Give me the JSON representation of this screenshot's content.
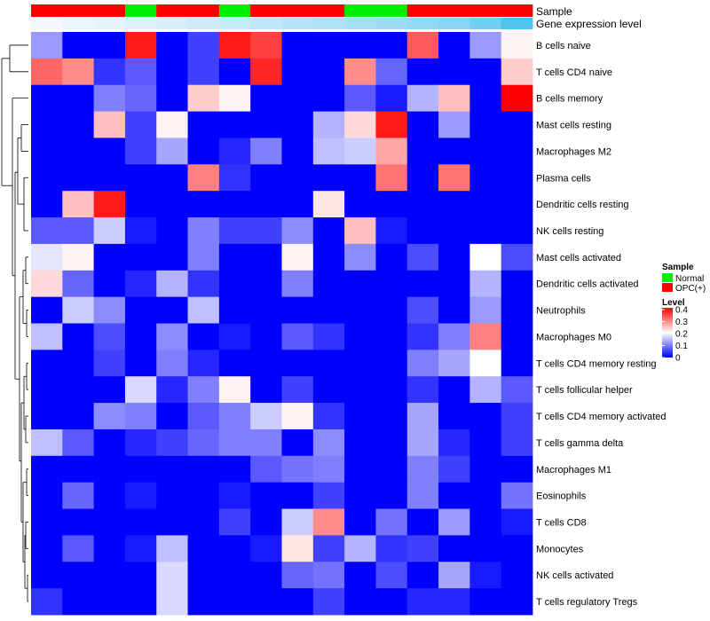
{
  "chart_data": {
    "type": "heatmap",
    "column_annotation": {
      "sample_label": "Sample",
      "level_label": "Gene expression level",
      "sample_groups": [
        "OPC(+)",
        "OPC(+)",
        "OPC(+)",
        "Normal",
        "OPC(+)",
        "OPC(+)",
        "Normal",
        "OPC(+)",
        "OPC(+)",
        "OPC(+)",
        "Normal",
        "Normal",
        "OPC(+)",
        "OPC(+)",
        "OPC(+)",
        "OPC(+)"
      ],
      "expression_level": [
        0.0,
        0.04,
        0.08,
        0.12,
        0.17,
        0.22,
        0.27,
        0.32,
        0.37,
        0.42,
        0.47,
        0.52,
        0.58,
        0.65,
        0.78,
        1.0
      ]
    },
    "rows": [
      "B cells naive",
      "T cells CD4 naive",
      "B cells memory",
      "Mast cells resting",
      "Macrophages M2",
      "Plasma cells",
      "Dendritic cells resting",
      "NK cells resting",
      "Mast cells activated",
      "Dendritic cells activated",
      "Neutrophils",
      "Macrophages M0",
      "T cells CD4 memory resting",
      "T cells follicular helper",
      "T cells CD4 memory activated",
      "T cells gamma delta",
      "Macrophages M1",
      "Eosinophils",
      "T cells CD8",
      "Monocytes",
      "NK cells activated",
      "T cells regulatory  Tregs"
    ],
    "values": [
      [
        0.12,
        0,
        0,
        0.38,
        0,
        0.05,
        0.38,
        0.35,
        0,
        0,
        0,
        0,
        0.33,
        0,
        0.12,
        0.21
      ],
      [
        0.32,
        0.29,
        0.04,
        0.07,
        0,
        0.05,
        0,
        0.37,
        0,
        0,
        0.29,
        0.08,
        0,
        0,
        0,
        0.24
      ],
      [
        0,
        0,
        0.1,
        0.08,
        0,
        0.24,
        0.21,
        0,
        0,
        0,
        0.07,
        0.02,
        0.14,
        0.25,
        0,
        0.4
      ],
      [
        0,
        0,
        0.25,
        0.05,
        0.21,
        0,
        0,
        0,
        0,
        0.14,
        0.23,
        0.38,
        0,
        0.12,
        0,
        0
      ],
      [
        0,
        0,
        0,
        0.05,
        0.13,
        0,
        0.03,
        0.1,
        0,
        0.15,
        0.16,
        0.27,
        0,
        0,
        0,
        0
      ],
      [
        0,
        0,
        0,
        0,
        0,
        0.3,
        0.04,
        0,
        0,
        0,
        0,
        0.31,
        0,
        0.31,
        0,
        0
      ],
      [
        0,
        0.25,
        0.38,
        0,
        0,
        0,
        0,
        0,
        0,
        0.22,
        0,
        0,
        0,
        0,
        0,
        0
      ],
      [
        0.07,
        0.07,
        0.16,
        0.02,
        0,
        0.1,
        0.05,
        0.05,
        0.11,
        0,
        0.25,
        0.02,
        0,
        0,
        0,
        0
      ],
      [
        0.18,
        0.21,
        0,
        0,
        0,
        0.1,
        0,
        0,
        0.21,
        0,
        0.11,
        0,
        0.06,
        0,
        0.2,
        0.06
      ],
      [
        0.23,
        0.08,
        0,
        0.03,
        0.14,
        0.04,
        0,
        0,
        0.1,
        0,
        0,
        0,
        0,
        0,
        0.14,
        0
      ],
      [
        0,
        0.16,
        0.11,
        0,
        0,
        0.15,
        0,
        0,
        0,
        0,
        0,
        0,
        0.06,
        0,
        0.12,
        0
      ],
      [
        0.15,
        0,
        0.06,
        0,
        0.11,
        0,
        0.02,
        0,
        0.07,
        0.04,
        0,
        0,
        0.04,
        0.1,
        0.3,
        0
      ],
      [
        0,
        0,
        0.05,
        0,
        0.1,
        0.03,
        0,
        0,
        0,
        0,
        0,
        0,
        0.1,
        0.13,
        0.2,
        0
      ],
      [
        0,
        0,
        0,
        0.17,
        0.03,
        0.1,
        0.21,
        0,
        0.05,
        0,
        0,
        0,
        0.04,
        0,
        0.14,
        0.07
      ],
      [
        0,
        0,
        0.11,
        0.1,
        0,
        0.07,
        0.1,
        0.16,
        0.21,
        0.04,
        0,
        0,
        0.13,
        0,
        0,
        0.05
      ],
      [
        0.15,
        0.07,
        0,
        0.03,
        0.05,
        0.08,
        0.1,
        0.1,
        0,
        0.11,
        0,
        0,
        0.13,
        0.03,
        0,
        0.05
      ],
      [
        0,
        0,
        0,
        0,
        0,
        0,
        0,
        0.07,
        0.09,
        0.1,
        0,
        0,
        0.1,
        0.05,
        0,
        0
      ],
      [
        0,
        0.08,
        0,
        0.02,
        0,
        0,
        0.02,
        0,
        0,
        0.05,
        0,
        0,
        0.1,
        0,
        0,
        0.09
      ],
      [
        0,
        0,
        0,
        0,
        0,
        0,
        0.05,
        0,
        0.16,
        0.29,
        0,
        0.09,
        0,
        0.12,
        0,
        0.02
      ],
      [
        0,
        0.07,
        0,
        0.02,
        0.15,
        0,
        0,
        0.02,
        0.22,
        0.05,
        0.14,
        0.04,
        0.05,
        0,
        0,
        0
      ],
      [
        0,
        0,
        0,
        0,
        0.17,
        0,
        0,
        0,
        0.08,
        0.09,
        0,
        0.06,
        0,
        0.13,
        0.02,
        0
      ],
      [
        0.04,
        0,
        0,
        0,
        0.17,
        0,
        0,
        0,
        0,
        0.05,
        0,
        0,
        0.03,
        0.03,
        0,
        0
      ]
    ],
    "legend": {
      "placement": "right",
      "sample": {
        "title": "Sample",
        "items": [
          {
            "label": "Normal",
            "color": "#00ee00"
          },
          {
            "label": "OPC(+)",
            "color": "#ff0000"
          }
        ]
      },
      "level": {
        "title": "Level",
        "ticks": [
          0.4,
          0.3,
          0.2,
          0.1,
          0
        ],
        "range": [
          0,
          0.4
        ],
        "colors": {
          "low": "#0000ff",
          "mid": "#ffffff",
          "high": "#ff0000"
        }
      }
    },
    "annotation_colors": {
      "normal": "#00ee00",
      "opc": "#ff0000",
      "level_low": "#f2f8fc",
      "level_high": "#4fc3ec"
    }
  }
}
